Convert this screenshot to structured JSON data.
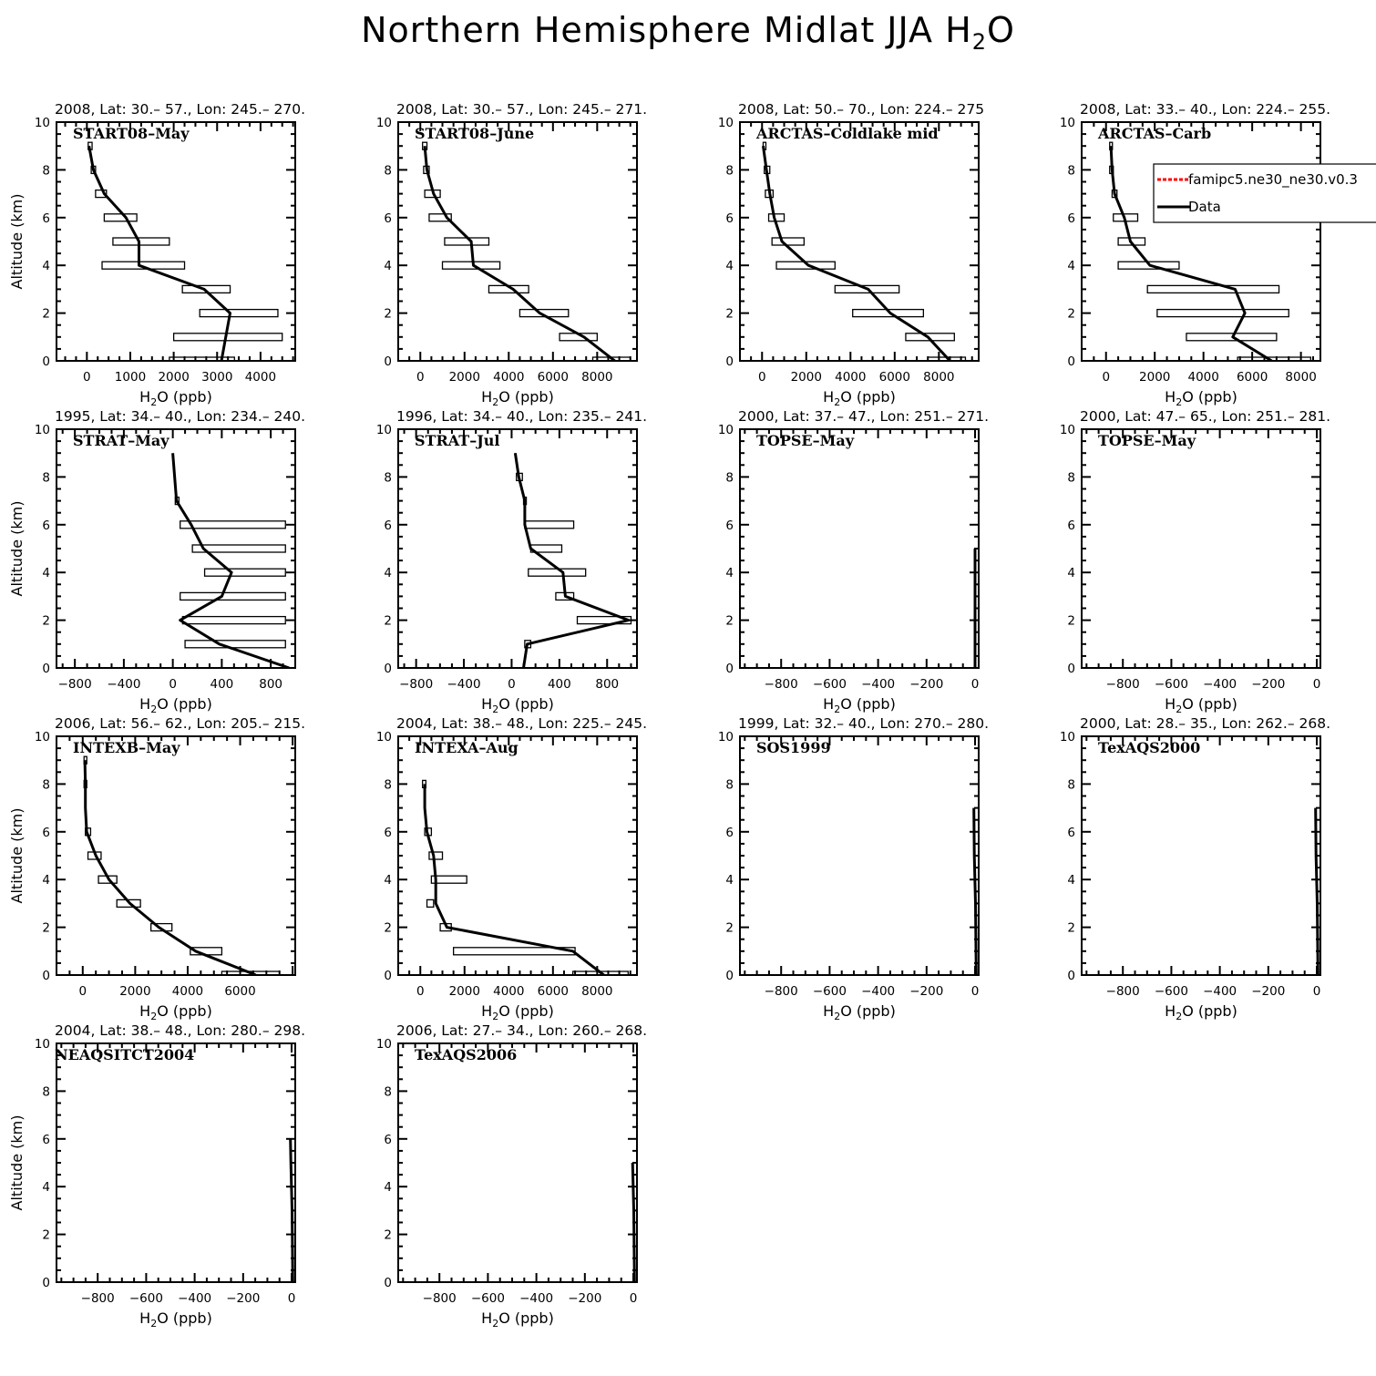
{
  "title": "Northern Hemisphere Midlat JJA H₂O",
  "legend": [
    {
      "label": "famipc5.ne30_ne30.v0.3",
      "color": "#ff0000",
      "style": "dashed"
    },
    {
      "label": "Data",
      "color": "#000000",
      "style": "solid"
    }
  ],
  "chart_data": [
    {
      "type": "line",
      "header": "2008, Lat:  30.– 57., Lon: 245.– 270.",
      "campaign": "START08–May",
      "xlabel": "H₂O (ppb)",
      "ylabel": "Altitude (km)",
      "xlim": [
        -700,
        4800
      ],
      "ylim": [
        0,
        10
      ],
      "xticks": [
        0,
        1000,
        2000,
        3000,
        4000
      ],
      "yticks": [
        0,
        2,
        4,
        6,
        8,
        10
      ],
      "profile": [
        [
          3100,
          0
        ],
        [
          3300,
          2
        ],
        [
          2700,
          3
        ],
        [
          1200,
          4
        ],
        [
          1200,
          5
        ],
        [
          900,
          6
        ],
        [
          400,
          7
        ],
        [
          150,
          8
        ],
        [
          50,
          9
        ]
      ],
      "boxes": [
        [
          1900,
          3400,
          0
        ],
        [
          2000,
          4500,
          1
        ],
        [
          2600,
          4400,
          2
        ],
        [
          2200,
          3300,
          3
        ],
        [
          350,
          2250,
          4
        ],
        [
          600,
          1900,
          5
        ],
        [
          400,
          1150,
          6
        ],
        [
          200,
          450,
          7
        ],
        [
          100,
          200,
          8
        ],
        [
          30,
          120,
          9
        ]
      ]
    },
    {
      "type": "line",
      "header": "2008, Lat:  30.– 57., Lon: 245.– 271.",
      "campaign": "START08–June",
      "xlabel": "H₂O (ppb)",
      "ylabel": "",
      "xlim": [
        -1000,
        9800
      ],
      "ylim": [
        0,
        10
      ],
      "xticks": [
        0,
        2000,
        4000,
        6000,
        8000
      ],
      "yticks": [
        0,
        2,
        4,
        6,
        8,
        10
      ],
      "profile": [
        [
          8800,
          0
        ],
        [
          7400,
          1
        ],
        [
          5400,
          2
        ],
        [
          4200,
          3
        ],
        [
          2400,
          4
        ],
        [
          2300,
          5
        ],
        [
          1200,
          6
        ],
        [
          600,
          7
        ],
        [
          300,
          8
        ],
        [
          200,
          9
        ]
      ],
      "boxes": [
        [
          7800,
          9500,
          0
        ],
        [
          6300,
          8000,
          1
        ],
        [
          4500,
          6700,
          2
        ],
        [
          3100,
          4900,
          3
        ],
        [
          1000,
          3600,
          4
        ],
        [
          1100,
          3100,
          5
        ],
        [
          400,
          1400,
          6
        ],
        [
          200,
          900,
          7
        ],
        [
          150,
          400,
          8
        ],
        [
          100,
          300,
          9
        ]
      ]
    },
    {
      "type": "line",
      "header": "2008, Lat:  50.– 70., Lon: 224.– 275",
      "campaign": "ARCTAS–Coldlake mid",
      "xlabel": "H₂O (ppb)",
      "ylabel": "",
      "xlim": [
        -1000,
        9800
      ],
      "ylim": [
        0,
        10
      ],
      "xticks": [
        0,
        2000,
        4000,
        6000,
        8000
      ],
      "yticks": [
        0,
        2,
        4,
        6,
        8,
        10
      ],
      "profile": [
        [
          8500,
          0
        ],
        [
          7500,
          1
        ],
        [
          5800,
          2
        ],
        [
          4800,
          3
        ],
        [
          2100,
          4
        ],
        [
          900,
          5
        ],
        [
          550,
          6
        ],
        [
          350,
          7
        ],
        [
          200,
          8
        ],
        [
          50,
          9
        ]
      ],
      "boxes": [
        [
          7500,
          9200,
          0
        ],
        [
          6500,
          8700,
          1
        ],
        [
          4100,
          7300,
          2
        ],
        [
          3300,
          6200,
          3
        ],
        [
          650,
          3300,
          4
        ],
        [
          450,
          1900,
          5
        ],
        [
          300,
          1000,
          6
        ],
        [
          150,
          500,
          7
        ],
        [
          100,
          350,
          8
        ],
        [
          50,
          150,
          9
        ]
      ]
    },
    {
      "type": "line",
      "header": "2008, Lat:  33.– 40., Lon: 224.– 255.",
      "campaign": "ARCTAS–Carb",
      "xlabel": "H₂O (ppb)",
      "ylabel": "",
      "xlim": [
        -1000,
        8800
      ],
      "ylim": [
        0,
        10
      ],
      "xticks": [
        0,
        2000,
        4000,
        6000,
        8000
      ],
      "yticks": [
        0,
        2,
        4,
        6,
        8,
        10
      ],
      "profile": [
        [
          6800,
          0
        ],
        [
          5200,
          1
        ],
        [
          5700,
          2
        ],
        [
          5300,
          3
        ],
        [
          1800,
          4
        ],
        [
          1000,
          5
        ],
        [
          750,
          6
        ],
        [
          350,
          7
        ],
        [
          250,
          8
        ],
        [
          200,
          9
        ]
      ],
      "boxes": [
        [
          5400,
          8400,
          0
        ],
        [
          3300,
          7000,
          1
        ],
        [
          2100,
          7500,
          2
        ],
        [
          1700,
          7100,
          3
        ],
        [
          500,
          3000,
          4
        ],
        [
          500,
          1600,
          5
        ],
        [
          300,
          1300,
          6
        ],
        [
          250,
          450,
          7
        ],
        [
          150,
          300,
          8
        ],
        [
          150,
          250,
          9
        ]
      ]
    },
    {
      "type": "line",
      "header": "1995, Lat: 34.– 40., Lon: 234.– 240.",
      "campaign": "STRAT–May",
      "xlabel": "H₂O (ppb)",
      "ylabel": "Altitude (km)",
      "xlim": [
        -950,
        1000
      ],
      "ylim": [
        0,
        10
      ],
      "xticks": [
        -800,
        -400,
        0,
        400,
        800
      ],
      "yticks": [
        0,
        2,
        4,
        6,
        8,
        10
      ],
      "profile": [
        [
          950,
          0
        ],
        [
          380,
          1
        ],
        [
          60,
          2
        ],
        [
          400,
          3
        ],
        [
          480,
          4
        ],
        [
          250,
          5
        ],
        [
          150,
          6
        ],
        [
          30,
          7
        ],
        [
          0,
          9
        ]
      ],
      "boxes": [
        [
          100,
          920,
          1
        ],
        [
          80,
          920,
          2
        ],
        [
          60,
          920,
          3
        ],
        [
          260,
          920,
          4
        ],
        [
          160,
          920,
          5
        ],
        [
          60,
          920,
          6
        ],
        [
          20,
          50,
          7
        ]
      ]
    },
    {
      "type": "line",
      "header": "1996, Lat: 34.– 40., Lon: 235.– 241.",
      "campaign": "STRAT–Jul",
      "xlabel": "H₂O (ppb)",
      "ylabel": "",
      "xlim": [
        -950,
        1050
      ],
      "ylim": [
        0,
        10
      ],
      "xticks": [
        -800,
        -400,
        0,
        400,
        800
      ],
      "yticks": [
        0,
        2,
        4,
        6,
        8,
        10
      ],
      "profile": [
        [
          100,
          0
        ],
        [
          130,
          1
        ],
        [
          980,
          2
        ],
        [
          450,
          3
        ],
        [
          430,
          4
        ],
        [
          160,
          5
        ],
        [
          110,
          6
        ],
        [
          110,
          7
        ],
        [
          60,
          8
        ],
        [
          30,
          9
        ]
      ],
      "boxes": [
        [
          110,
          160,
          1
        ],
        [
          550,
          1000,
          2
        ],
        [
          370,
          520,
          3
        ],
        [
          140,
          620,
          4
        ],
        [
          160,
          420,
          5
        ],
        [
          110,
          520,
          6
        ],
        [
          100,
          120,
          7
        ],
        [
          40,
          90,
          8
        ]
      ]
    },
    {
      "type": "line",
      "header": "2000, Lat: 37.– 47., Lon: 251.– 271.",
      "campaign": "TOPSE–May",
      "xlabel": "H₂O (ppb)",
      "ylabel": "",
      "xlim": [
        -970,
        15
      ],
      "ylim": [
        0,
        10
      ],
      "xticks": [
        -800,
        -600,
        -400,
        -200,
        0
      ],
      "yticks": [
        0,
        2,
        4,
        6,
        8,
        10
      ],
      "profile": [
        [
          0,
          0
        ],
        [
          0,
          5
        ]
      ],
      "boxes": []
    },
    {
      "type": "line",
      "header": "2000, Lat: 47.– 65., Lon: 251.– 281.",
      "campaign": "TOPSE–May",
      "xlabel": "H₂O (ppb)",
      "ylabel": "",
      "xlim": [
        -970,
        15
      ],
      "ylim": [
        0,
        10
      ],
      "xticks": [
        -800,
        -600,
        -400,
        -200,
        0
      ],
      "yticks": [
        0,
        2,
        4,
        6,
        8,
        10
      ],
      "profile": [],
      "boxes": []
    },
    {
      "type": "line",
      "header": "2006, Lat: 56.– 62., Lon: 205.– 215.",
      "campaign": "INTEXB–May",
      "xlabel": "H₂O (ppb)",
      "ylabel": "Altitude (km)",
      "xlim": [
        -1000,
        8100
      ],
      "ylim": [
        0,
        10
      ],
      "xticks": [
        0,
        2000,
        4000,
        6000
      ],
      "yticks": [
        0,
        2,
        4,
        6,
        8,
        10
      ],
      "profile": [
        [
          6600,
          0
        ],
        [
          4300,
          1
        ],
        [
          2900,
          2
        ],
        [
          1800,
          3
        ],
        [
          1000,
          4
        ],
        [
          500,
          5
        ],
        [
          150,
          6
        ],
        [
          100,
          7
        ],
        [
          100,
          8
        ],
        [
          80,
          9
        ]
      ],
      "boxes": [
        [
          5300,
          7500,
          0
        ],
        [
          4100,
          5300,
          1
        ],
        [
          2600,
          3400,
          2
        ],
        [
          1300,
          2200,
          3
        ],
        [
          600,
          1300,
          4
        ],
        [
          200,
          700,
          5
        ],
        [
          100,
          300,
          6
        ],
        [
          50,
          150,
          8
        ],
        [
          50,
          130,
          9
        ]
      ]
    },
    {
      "type": "line",
      "header": "2004, Lat: 38.– 48., Lon: 225.– 245.",
      "campaign": "INTEXA–Aug",
      "xlabel": "H₂O (ppb)",
      "ylabel": "",
      "xlim": [
        -1000,
        9800
      ],
      "ylim": [
        0,
        10
      ],
      "xticks": [
        0,
        2000,
        4000,
        6000,
        8000
      ],
      "yticks": [
        0,
        2,
        4,
        6,
        8,
        10
      ],
      "profile": [
        [
          8300,
          0
        ],
        [
          6900,
          1
        ],
        [
          1200,
          2
        ],
        [
          700,
          3
        ],
        [
          700,
          4
        ],
        [
          600,
          5
        ],
        [
          300,
          6
        ],
        [
          200,
          7
        ],
        [
          200,
          8
        ]
      ],
      "boxes": [
        [
          6900,
          9400,
          0
        ],
        [
          1500,
          7000,
          1
        ],
        [
          900,
          1400,
          2
        ],
        [
          300,
          600,
          3
        ],
        [
          500,
          2100,
          4
        ],
        [
          400,
          1000,
          5
        ],
        [
          200,
          500,
          6
        ],
        [
          100,
          250,
          8
        ]
      ]
    },
    {
      "type": "line",
      "header": "1999, Lat: 32.– 40., Lon: 270.– 280.",
      "campaign": "SOS1999",
      "xlabel": "H₂O (ppb)",
      "ylabel": "",
      "xlim": [
        -970,
        15
      ],
      "ylim": [
        0,
        10
      ],
      "xticks": [
        -800,
        -600,
        -400,
        -200,
        0
      ],
      "yticks": [
        0,
        2,
        4,
        6,
        8,
        10
      ],
      "profile": [
        [
          5,
          0
        ],
        [
          2,
          3
        ],
        [
          -3,
          5
        ],
        [
          -5,
          7
        ]
      ],
      "boxes": []
    },
    {
      "type": "line",
      "header": "2000, Lat: 28.– 35., Lon: 262.– 268.",
      "campaign": "TexAQS2000",
      "xlabel": "H₂O (ppb)",
      "ylabel": "",
      "xlim": [
        -970,
        15
      ],
      "ylim": [
        0,
        10
      ],
      "xticks": [
        -800,
        -600,
        -400,
        -200,
        0
      ],
      "yticks": [
        0,
        2,
        4,
        6,
        8,
        10
      ],
      "profile": [
        [
          5,
          0
        ],
        [
          2,
          3
        ],
        [
          -3,
          5
        ],
        [
          -5,
          7
        ]
      ],
      "boxes": []
    },
    {
      "type": "line",
      "header": "2004, Lat: 38.– 48., Lon: 280.– 298.",
      "campaign": "NEAQSITCT2004",
      "xlabel": "H₂O (ppb)",
      "ylabel": "Altitude (km)",
      "xlim": [
        -970,
        15
      ],
      "ylim": [
        0,
        10
      ],
      "xticks": [
        -800,
        -600,
        -400,
        -200,
        0
      ],
      "yticks": [
        0,
        2,
        4,
        6,
        8,
        10
      ],
      "profile": [
        [
          5,
          0
        ],
        [
          2,
          3
        ],
        [
          -3,
          5
        ],
        [
          -5,
          6
        ]
      ],
      "boxes": []
    },
    {
      "type": "line",
      "header": "2006, Lat: 27.– 34., Lon: 260.– 268.",
      "campaign": "TexAQS2006",
      "xlabel": "H₂O (ppb)",
      "ylabel": "",
      "xlim": [
        -970,
        15
      ],
      "ylim": [
        0,
        10
      ],
      "xticks": [
        -800,
        -600,
        -400,
        -200,
        0
      ],
      "yticks": [
        0,
        2,
        4,
        6,
        8,
        10
      ],
      "profile": [
        [
          5,
          0
        ],
        [
          2,
          3
        ],
        [
          -3,
          5
        ]
      ],
      "boxes": []
    }
  ]
}
